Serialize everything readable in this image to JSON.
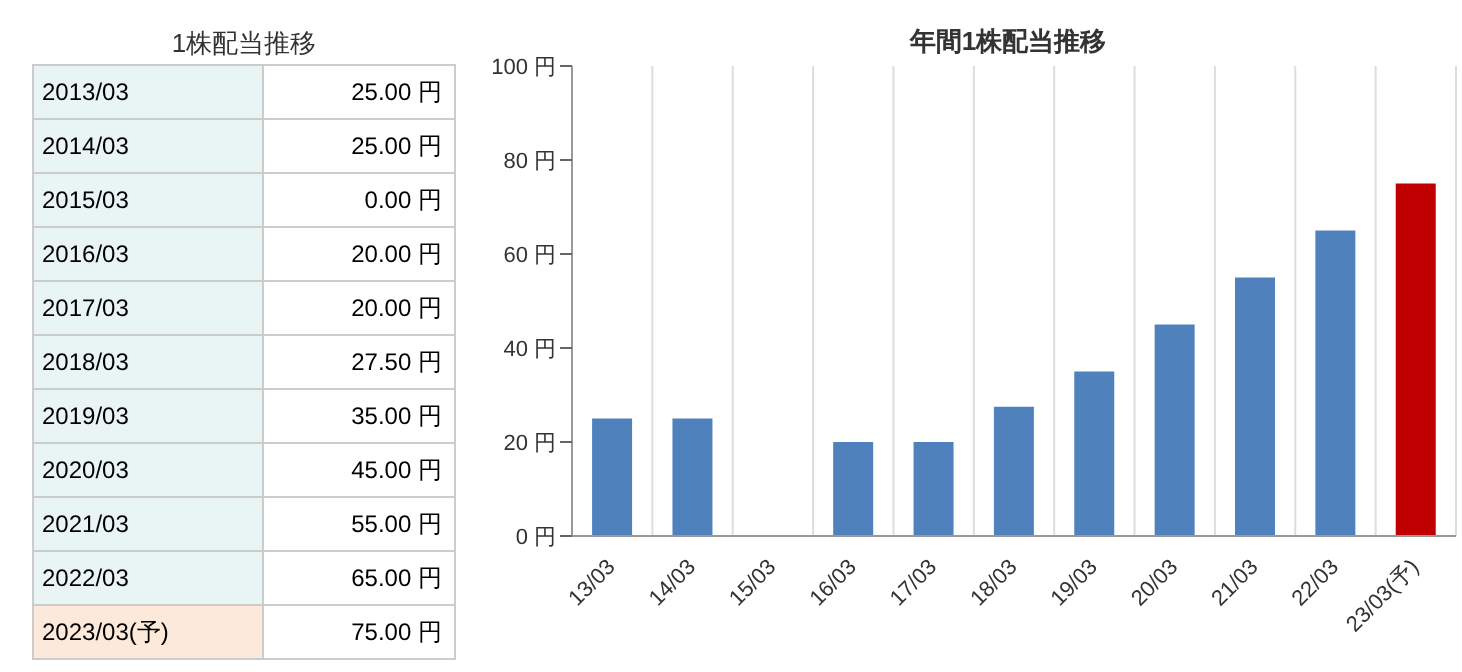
{
  "chart_data": [
    {
      "type": "other",
      "title": "1株配当推移",
      "categories": [
        "2013/03",
        "2014/03",
        "2015/03",
        "2016/03",
        "2017/03",
        "2018/03",
        "2019/03",
        "2020/03",
        "2021/03",
        "2022/03",
        "2023/03(予)"
      ],
      "value_labels": [
        "25.00 円",
        "25.00 円",
        "0.00 円",
        "20.00 円",
        "20.00 円",
        "27.50 円",
        "35.00 円",
        "45.00 円",
        "55.00 円",
        "65.00 円",
        "75.00 円"
      ],
      "colors": [
        "#e9f5f5",
        "#e9f5f5",
        "#e9f5f5",
        "#e9f5f5",
        "#e9f5f5",
        "#e9f5f5",
        "#e9f5f5",
        "#e9f5f5",
        "#e9f5f5",
        "#e9f5f5",
        "#fde9d9"
      ]
    },
    {
      "type": "bar",
      "title": "年間1株配当推移",
      "categories": [
        "13/03",
        "14/03",
        "15/03",
        "16/03",
        "17/03",
        "18/03",
        "19/03",
        "20/03",
        "21/03",
        "22/03",
        "23/03(予)"
      ],
      "values": [
        25,
        25,
        0,
        20,
        20,
        27.5,
        35,
        45,
        55,
        65,
        75
      ],
      "colors": [
        "#4f81bd",
        "#4f81bd",
        "#4f81bd",
        "#4f81bd",
        "#4f81bd",
        "#4f81bd",
        "#4f81bd",
        "#4f81bd",
        "#4f81bd",
        "#4f81bd",
        "#c00000"
      ],
      "ylim": [
        0,
        100
      ],
      "yticks": [
        {
          "value": 0,
          "label": "0 円"
        },
        {
          "value": 20,
          "label": "20 円"
        },
        {
          "value": 40,
          "label": "40 円"
        },
        {
          "value": 60,
          "label": "60 円"
        },
        {
          "value": 80,
          "label": "80 円"
        },
        {
          "value": 100,
          "label": "100 円"
        }
      ],
      "grid": "x"
    }
  ]
}
